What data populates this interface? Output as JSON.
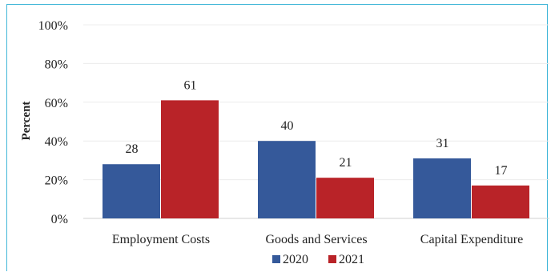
{
  "chart_data": {
    "type": "bar",
    "categories": [
      "Employment Costs",
      "Goods and Services",
      "Capital Expenditure"
    ],
    "series": [
      {
        "name": "2020",
        "values": [
          28,
          40,
          31
        ],
        "color": "#35599a"
      },
      {
        "name": "2021",
        "values": [
          61,
          21,
          17
        ],
        "color": "#b92328"
      }
    ],
    "ylabel": "Percent",
    "xlabel": "",
    "ylim": [
      0,
      100
    ],
    "yticks": [
      "0%",
      "20%",
      "40%",
      "60%",
      "80%",
      "100%"
    ],
    "grid": true,
    "legend_position": "bottom",
    "data_labels": true,
    "frame_color": "#41b6d8"
  }
}
